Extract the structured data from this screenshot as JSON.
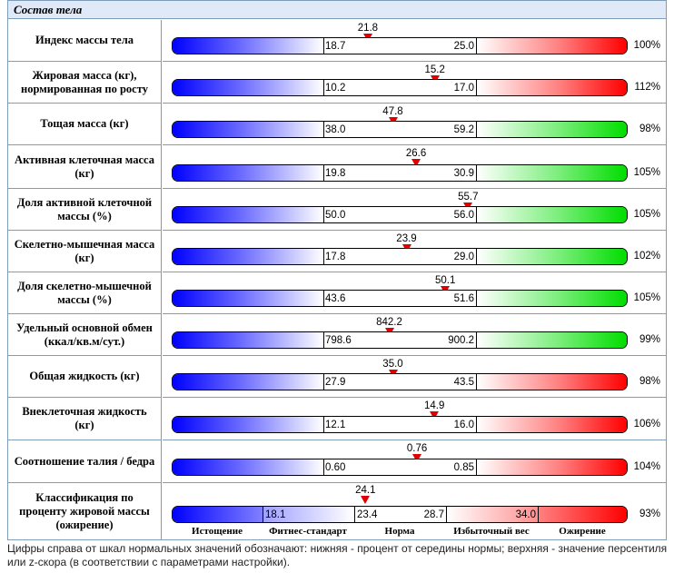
{
  "panel": {
    "title": "Состав тела"
  },
  "rows": [
    {
      "label": "Индекс массы тела",
      "value": "21.8",
      "low": "18.7",
      "high": "25.0",
      "percent": "100%",
      "high_color": "red",
      "pos": 0.43
    },
    {
      "label": "Жировая масса (кг), нормированная по росту",
      "value": "15.2",
      "low": "10.2",
      "high": "17.0",
      "percent": "112%",
      "high_color": "red",
      "pos": 0.577
    },
    {
      "label": "Тощая масса (кг)",
      "value": "47.8",
      "low": "38.0",
      "high": "59.2",
      "percent": "98%",
      "high_color": "green",
      "pos": 0.485
    },
    {
      "label": "Активная клеточная масса (кг)",
      "value": "26.6",
      "low": "19.8",
      "high": "30.9",
      "percent": "105%",
      "high_color": "green",
      "pos": 0.536
    },
    {
      "label": "Доля активной клеточной массы (%)",
      "value": "55.7",
      "low": "50.0",
      "high": "56.0",
      "percent": "105%",
      "high_color": "green",
      "pos": 0.65
    },
    {
      "label": "Скелетно-мышечная масса (кг)",
      "value": "23.9",
      "low": "17.8",
      "high": "29.0",
      "percent": "102%",
      "high_color": "green",
      "pos": 0.515
    },
    {
      "label": "Доля скелетно-мышечной массы (%)",
      "value": "50.1",
      "low": "43.6",
      "high": "51.6",
      "percent": "105%",
      "high_color": "green",
      "pos": 0.6
    },
    {
      "label": "Удельный основной обмен (ккал/кв.м/сут.)",
      "value": "842.2",
      "low": "798.6",
      "high": "900.2",
      "percent": "99%",
      "high_color": "green",
      "pos": 0.477
    },
    {
      "label": "Общая жидкость (кг)",
      "value": "35.0",
      "low": "27.9",
      "high": "43.5",
      "percent": "98%",
      "high_color": "red",
      "pos": 0.485
    },
    {
      "label": "Внеклеточная жидкость (кг)",
      "value": "14.9",
      "low": "12.1",
      "high": "16.0",
      "percent": "106%",
      "high_color": "red",
      "pos": 0.576
    },
    {
      "label": "Соотношение талия / бедра",
      "value": "0.76",
      "low": "0.60",
      "high": "0.85",
      "percent": "104%",
      "high_color": "red",
      "pos": 0.538
    }
  ],
  "classification": {
    "label": "Классификация по проценту жировой массы (ожирение)",
    "value": "24.1",
    "pos": 0.425,
    "ticks": [
      "18.1",
      "23.4",
      "28.7",
      "34.0"
    ],
    "percent": "93%",
    "categories": [
      "Истощение",
      "Фитнес-стандарт",
      "Норма",
      "Избыточный вес",
      "Ожирение"
    ]
  },
  "footnote": "Цифры справа от шкал нормальных значений обозначают: нижняя - процент от середины нормы; верхняя - значение персентиля или z-скора (в соответствии с параметрами настройки)."
}
